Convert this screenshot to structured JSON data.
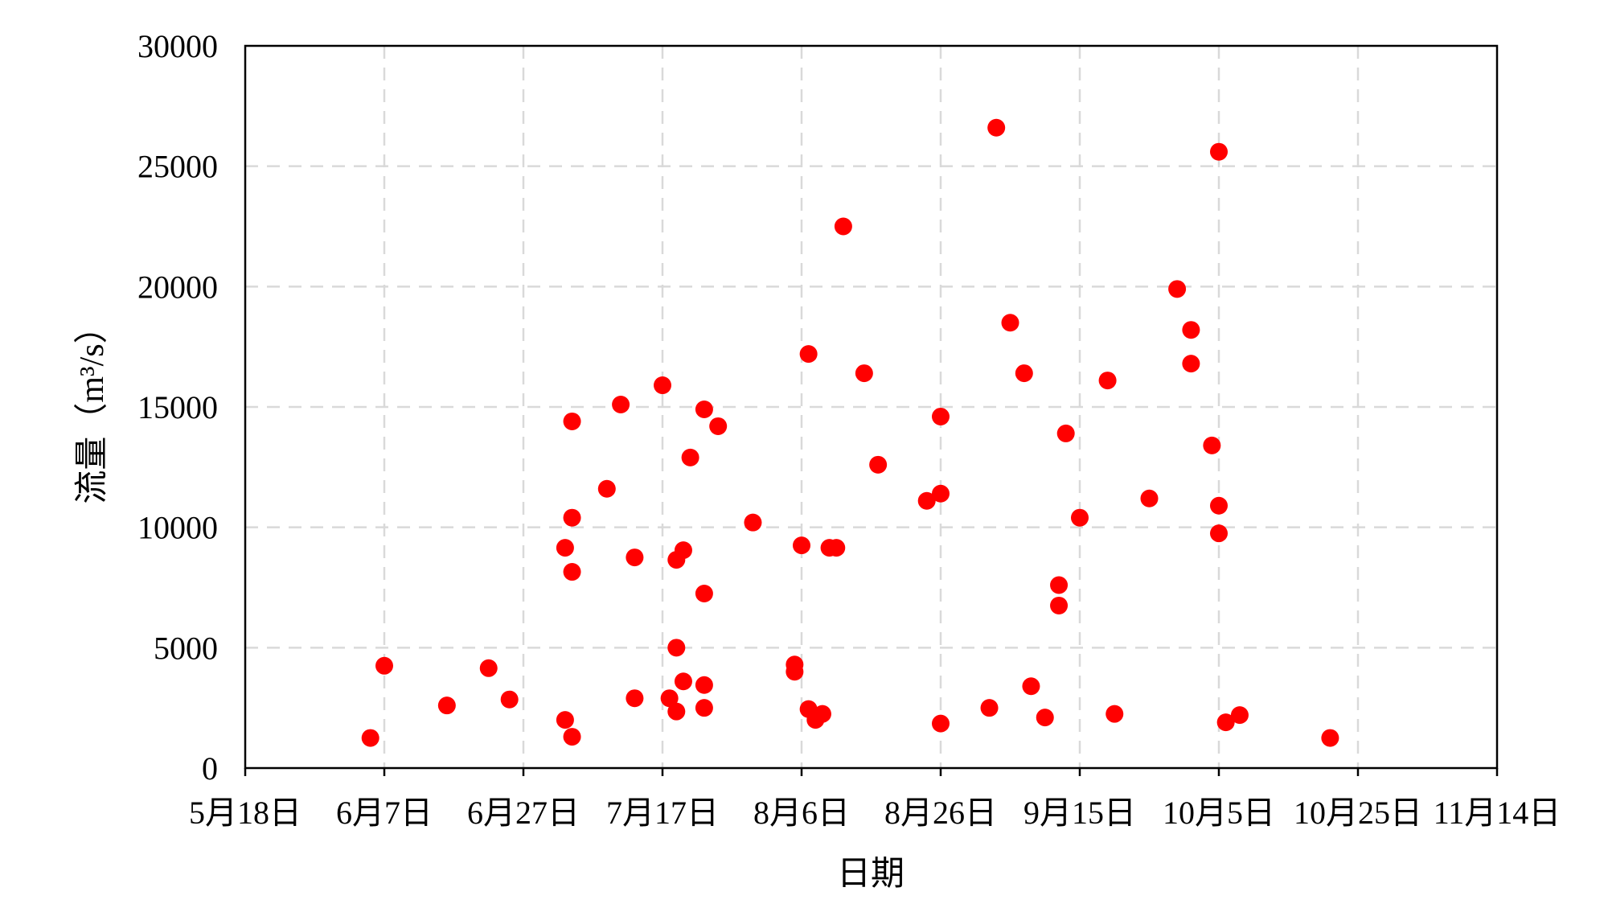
{
  "chart_data": {
    "type": "scatter",
    "xlabel": "日期",
    "ylabel": "流量（m³/s）",
    "x_type": "date",
    "xlim": [
      "5-18",
      "11-14"
    ],
    "ylim": [
      0,
      30000
    ],
    "grid": true,
    "legend": "none",
    "marker_color": "#ff0000",
    "x_tick_values": [
      "5-18",
      "6-7",
      "6-27",
      "7-17",
      "8-6",
      "8-26",
      "9-15",
      "10-5",
      "10-25",
      "11-14"
    ],
    "x_tick_labels": [
      "5月18日",
      "6月7日",
      "6月27日",
      "7月17日",
      "8月6日",
      "8月26日",
      "9月15日",
      "10月5日",
      "10月25日",
      "11月14日"
    ],
    "y_tick_values": [
      0,
      5000,
      10000,
      15000,
      20000,
      25000,
      30000
    ],
    "y_tick_labels": [
      "0",
      "5000",
      "10000",
      "15000",
      "20000",
      "25000",
      "30000"
    ],
    "series": [
      {
        "x": [
          "6-5",
          "6-7",
          "6-16",
          "6-22",
          "6-25",
          "7-3",
          "7-4",
          "7-4",
          "7-4",
          "7-4",
          "7-3",
          "7-9",
          "7-11",
          "7-13",
          "7-13",
          "7-17",
          "7-18",
          "7-20",
          "7-20",
          "7-19",
          "7-19",
          "7-19",
          "7-21",
          "7-23",
          "7-23",
          "7-23",
          "7-23",
          "7-25",
          "7-30",
          "8-5",
          "8-5",
          "8-6",
          "8-7",
          "8-7",
          "8-8",
          "8-9",
          "8-10",
          "8-11",
          "8-12",
          "8-15",
          "8-17",
          "8-24",
          "8-26",
          "8-26",
          "8-26",
          "9-2",
          "9-3",
          "9-5",
          "9-7",
          "9-8",
          "9-10",
          "9-12",
          "9-12",
          "9-13",
          "9-15",
          "9-19",
          "9-20",
          "9-25",
          "9-29",
          "10-1",
          "10-1",
          "10-4",
          "10-5",
          "10-5",
          "10-5",
          "10-6",
          "10-8",
          "10-21"
        ],
        "y": [
          1250,
          4250,
          2600,
          4150,
          2850,
          2000,
          1300,
          14400,
          10400,
          8150,
          9150,
          11600,
          15100,
          8750,
          2900,
          15900,
          2900,
          9050,
          3600,
          2350,
          8650,
          5000,
          12900,
          7250,
          3450,
          2500,
          14900,
          14200,
          10200,
          4300,
          4000,
          9250,
          17200,
          2450,
          2000,
          2250,
          9150,
          9150,
          22500,
          16400,
          12600,
          11100,
          11400,
          1850,
          14600,
          2500,
          26600,
          18500,
          16400,
          3400,
          2100,
          7600,
          6750,
          13900,
          10400,
          16100,
          2250,
          11200,
          19900,
          18200,
          16800,
          13400,
          10900,
          25600,
          9750,
          1900,
          2200,
          1250
        ]
      }
    ]
  }
}
